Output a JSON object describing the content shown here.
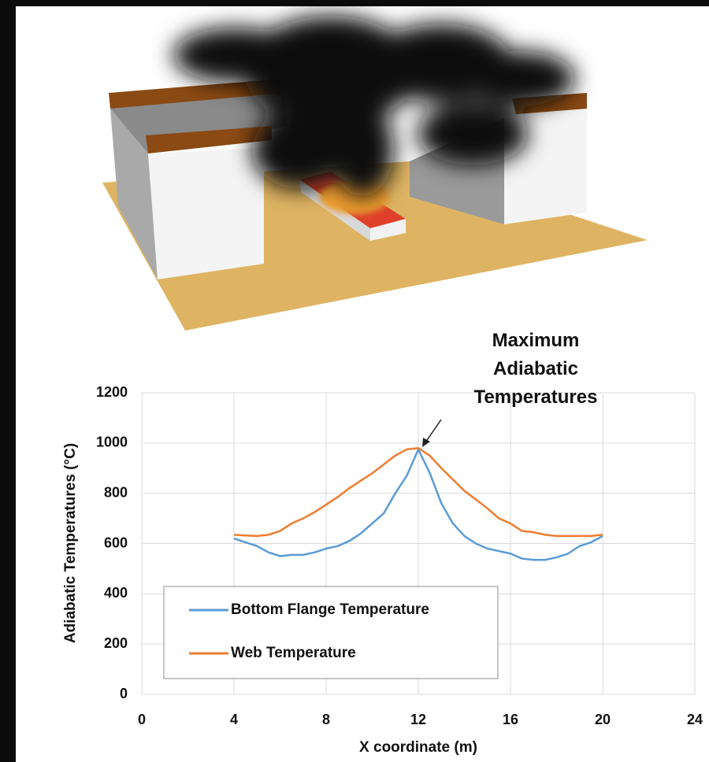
{
  "chart_data": {
    "type": "line",
    "annotation": "Maximum Adiabatic Temperatures",
    "x_label": "X coordinate (m)",
    "y_label": "Adiabatic Temperatures (°C)",
    "x": [
      4,
      4.5,
      5,
      5.5,
      6,
      6.5,
      7,
      7.5,
      8,
      8.5,
      9,
      9.5,
      10,
      10.5,
      11,
      11.5,
      12,
      12.5,
      13,
      13.5,
      14,
      14.5,
      15,
      15.5,
      16,
      16.5,
      17,
      17.5,
      18,
      18.5,
      19,
      19.5,
      20
    ],
    "series": [
      {
        "name": "Bottom Flange Temperature",
        "color": "#5b9bd5",
        "values": [
          620,
          605,
          590,
          565,
          550,
          555,
          555,
          565,
          580,
          590,
          610,
          640,
          680,
          720,
          800,
          870,
          975,
          880,
          760,
          680,
          630,
          600,
          580,
          570,
          560,
          540,
          535,
          535,
          545,
          560,
          590,
          605,
          630
        ]
      },
      {
        "name": "Web Temperature",
        "color": "#ed7d31",
        "values": [
          635,
          632,
          630,
          635,
          650,
          680,
          700,
          725,
          755,
          785,
          820,
          850,
          880,
          915,
          950,
          975,
          980,
          950,
          900,
          855,
          810,
          775,
          740,
          700,
          680,
          650,
          645,
          635,
          630,
          630,
          630,
          630,
          635
        ]
      }
    ],
    "xlim": [
      0,
      24
    ],
    "xticks": [
      0,
      4,
      8,
      12,
      16,
      20,
      24
    ],
    "ylim": [
      0,
      1200
    ],
    "yticks": [
      0,
      200,
      400,
      600,
      800,
      1000,
      1200
    ],
    "grid": true
  }
}
